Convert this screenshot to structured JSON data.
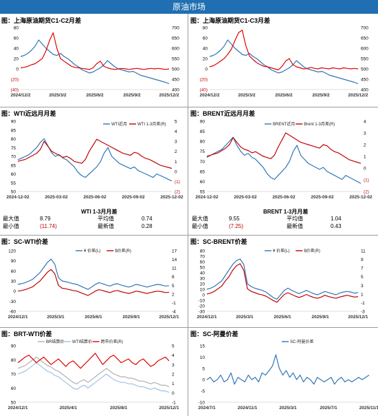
{
  "banner": {
    "title": "原油市场"
  },
  "stats": {
    "wti": {
      "title": "WTI 1-3月月差",
      "labels": [
        "最大值",
        "平均值",
        "最小值",
        "最新值"
      ],
      "max": "8.79",
      "avg": "0.74",
      "min": "(11.74)",
      "latest": "0.28"
    },
    "brent": {
      "title": "BRENT 1-3月月差",
      "labels": [
        "最大值",
        "平均值",
        "最小值",
        "最新值"
      ],
      "max": "9.55",
      "avg": "1.04",
      "min": "(7.25)",
      "latest": "0.43"
    }
  },
  "chart_data": [
    {
      "id": "sc_c1c2",
      "type": "line",
      "title": "图：上海原油期货C1-C2月差",
      "x_ticks": [
        "2024/12/2",
        "2025/3/2",
        "2025/6/2",
        "2025/9/2",
        "2025/12/2"
      ],
      "y_left_ticks": [
        "80",
        "60",
        "40",
        "20",
        "0",
        "(20)",
        "(40)"
      ],
      "y_left_range": [
        -40,
        80
      ],
      "y_right_ticks": [
        "700",
        "650",
        "600",
        "550",
        "500",
        "450",
        "400"
      ],
      "y_right_range": [
        400,
        700
      ],
      "series": [
        {
          "axis": "right",
          "color": "#2e75b6",
          "values": [
            560,
            565,
            575,
            590,
            610,
            640,
            620,
            600,
            585,
            570,
            565,
            575,
            560,
            550,
            535,
            520,
            510,
            495,
            488,
            480,
            485,
            495,
            505,
            520,
            540,
            525,
            510,
            500,
            495,
            490,
            485,
            488,
            480,
            470,
            465,
            460,
            455,
            450,
            445,
            440,
            435,
            428
          ]
        },
        {
          "axis": "left",
          "color": "#e00000",
          "values": [
            2,
            3,
            5,
            8,
            10,
            15,
            20,
            35,
            55,
            70,
            40,
            20,
            15,
            10,
            5,
            3,
            2,
            1,
            0,
            -1,
            2,
            10,
            15,
            5,
            2,
            0,
            -1,
            0,
            1,
            0,
            -1,
            0,
            1,
            0,
            -1,
            0,
            1,
            0,
            1,
            0,
            -1,
            0
          ]
        }
      ]
    },
    {
      "id": "sc_c1c3",
      "type": "line",
      "title": "图：上海原油期货C1-C3月差",
      "x_ticks": [
        "2024/12/2",
        "2025/3/2",
        "2025/6/2",
        "2025/9/2",
        "2025/12/2"
      ],
      "y_left_ticks": [
        "80",
        "60",
        "40",
        "20",
        "0",
        "(20)",
        "(40)"
      ],
      "y_left_range": [
        -40,
        80
      ],
      "y_right_ticks": [
        "700",
        "650",
        "600",
        "550",
        "500",
        "450",
        "400"
      ],
      "y_right_range": [
        400,
        700
      ],
      "series": [
        {
          "axis": "right",
          "color": "#2e75b6",
          "values": [
            560,
            565,
            575,
            590,
            610,
            640,
            620,
            600,
            585,
            570,
            565,
            575,
            560,
            550,
            535,
            520,
            510,
            495,
            488,
            480,
            485,
            495,
            505,
            520,
            540,
            525,
            510,
            500,
            495,
            490,
            485,
            488,
            480,
            470,
            465,
            460,
            455,
            450,
            445,
            440,
            435,
            428
          ]
        },
        {
          "axis": "left",
          "color": "#e00000",
          "values": [
            4,
            6,
            10,
            15,
            20,
            28,
            38,
            55,
            70,
            75,
            45,
            25,
            18,
            12,
            8,
            5,
            4,
            2,
            0,
            -2,
            5,
            15,
            20,
            8,
            4,
            2,
            0,
            1,
            3,
            1,
            0,
            2,
            1,
            0,
            2,
            1,
            0,
            2,
            1,
            0,
            1,
            0
          ]
        }
      ]
    },
    {
      "id": "wti_spread",
      "type": "line",
      "title": "图：WTI近远月月差",
      "x_ticks": [
        "2024-12-02",
        "2025-03-02",
        "2025-06-02",
        "2025-09-02",
        "2025-12-02"
      ],
      "y_left_ticks": [
        "90",
        "85",
        "80",
        "75",
        "70",
        "65",
        "60",
        "55",
        "50"
      ],
      "y_left_range": [
        50,
        90
      ],
      "y_right_ticks": [
        "5",
        "4",
        "3",
        "2",
        "1",
        "0",
        "(1)",
        "(2)"
      ],
      "y_right_range": [
        -2,
        5
      ],
      "series": [
        {
          "name": "WTI近月",
          "axis": "left",
          "color": "#2e75b6",
          "values": [
            68,
            69,
            70,
            71,
            73,
            75,
            78,
            80,
            76,
            72,
            70,
            71,
            69,
            68,
            66,
            64,
            61,
            59,
            58,
            60,
            62,
            64,
            67,
            72,
            75,
            70,
            68,
            66,
            65,
            64,
            63,
            64,
            62,
            61,
            60,
            59,
            58,
            60,
            59,
            58,
            57,
            56
          ]
        },
        {
          "name": "WTI 1-3月差(R)",
          "axis": "right",
          "color": "#c00000",
          "values": [
            1.0,
            1.1,
            1.2,
            1.4,
            1.6,
            1.8,
            2.2,
            3.0,
            2.5,
            2.0,
            1.8,
            1.6,
            1.4,
            1.5,
            1.3,
            1.0,
            0.9,
            0.8,
            1.2,
            2.0,
            2.6,
            3.2,
            3.0,
            2.8,
            2.6,
            2.4,
            2.2,
            2.0,
            1.8,
            1.7,
            1.6,
            1.9,
            1.8,
            1.5,
            1.3,
            1.2,
            1.0,
            0.8,
            0.6,
            0.5,
            0.4,
            0.3
          ]
        }
      ]
    },
    {
      "id": "brent_spread",
      "type": "line",
      "title": "图：BRENT近远月月差",
      "x_ticks": [
        "2024-12-02",
        "2025-03-02",
        "2025-06-02",
        "2025-09-02",
        "2025-12-02"
      ],
      "y_left_ticks": [
        "90",
        "85",
        "80",
        "75",
        "70",
        "65",
        "60",
        "55"
      ],
      "y_left_range": [
        55,
        90
      ],
      "y_right_ticks": [
        "4",
        "3",
        "2",
        "1",
        "0",
        "(1)",
        "(2)"
      ],
      "y_right_range": [
        -2,
        4
      ],
      "series": [
        {
          "name": "BRENT近月",
          "axis": "left",
          "color": "#2e75b6",
          "values": [
            72,
            73,
            74,
            75,
            76,
            78,
            80,
            82,
            78,
            75,
            73,
            74,
            72,
            71,
            69,
            67,
            64,
            62,
            61,
            63,
            65,
            67,
            70,
            75,
            78,
            73,
            71,
            69,
            68,
            67,
            66,
            67,
            65,
            64,
            63,
            62,
            61,
            63,
            62,
            61,
            60,
            59
          ]
        },
        {
          "name": "Brent 1-3月差(R)",
          "axis": "right",
          "color": "#c00000",
          "values": [
            1.0,
            1.1,
            1.2,
            1.3,
            1.5,
            1.7,
            2.0,
            2.6,
            2.2,
            1.8,
            1.6,
            1.5,
            1.3,
            1.4,
            1.2,
            1.0,
            0.9,
            0.8,
            1.1,
            1.8,
            2.4,
            3.0,
            2.8,
            2.6,
            2.4,
            2.2,
            2.1,
            2.0,
            1.9,
            1.8,
            1.7,
            2.0,
            1.9,
            1.6,
            1.4,
            1.3,
            1.1,
            0.9,
            0.7,
            0.6,
            0.5,
            0.4
          ]
        }
      ]
    },
    {
      "id": "sc_wti",
      "type": "line",
      "title": "图：SC-WTI价差",
      "x_ticks": [
        "2024/12/1",
        "2025/3/1",
        "2025/6/1",
        "2025/9/1",
        "2025/12/1"
      ],
      "y_left_ticks": [
        "120",
        "90",
        "60",
        "30",
        "0",
        "-30",
        "-60"
      ],
      "y_left_range": [
        -60,
        120
      ],
      "y_right_ticks": [
        "17",
        "14",
        "11",
        "8",
        "5",
        "2",
        "-1",
        "-4"
      ],
      "y_right_range": [
        -4,
        17
      ],
      "series": [
        {
          "name": "¥ 价差(L)",
          "axis": "left",
          "color": "#2e75b6",
          "values": [
            20,
            22,
            25,
            30,
            35,
            45,
            55,
            70,
            85,
            95,
            80,
            40,
            30,
            28,
            25,
            22,
            20,
            15,
            10,
            5,
            12,
            20,
            25,
            22,
            18,
            15,
            20,
            22,
            18,
            15,
            12,
            15,
            20,
            18,
            15,
            12,
            15,
            18,
            20,
            18,
            15,
            16
          ]
        },
        {
          "name": "$价差(R)",
          "axis": "right",
          "color": "#c00000",
          "values": [
            3,
            3.2,
            3.5,
            4,
            4.5,
            5.5,
            6.5,
            8,
            9.5,
            10.5,
            9,
            5,
            4,
            3.8,
            3.5,
            3.2,
            3,
            2.5,
            2,
            1.5,
            2.2,
            3,
            3.5,
            3.2,
            2.8,
            2.5,
            3,
            3.2,
            2.8,
            2.5,
            2.2,
            2.5,
            3,
            2.8,
            2.5,
            2.2,
            2.5,
            2.8,
            3,
            2.8,
            2.5,
            2.6
          ]
        }
      ]
    },
    {
      "id": "sc_brent",
      "type": "line",
      "title": "图：SC-BRENT价差",
      "x_ticks": [
        "2024/12/1",
        "2025/3/1",
        "2025/6/1",
        "2025/9/1",
        "2025/12/1"
      ],
      "y_left_ticks": [
        "80",
        "70",
        "60",
        "50",
        "40",
        "30",
        "20",
        "10",
        "0",
        "-10",
        "-20",
        "-30"
      ],
      "y_left_range": [
        -30,
        80
      ],
      "y_right_ticks": [
        "11",
        "9",
        "7",
        "5",
        "3",
        "1",
        "-1",
        "-3"
      ],
      "y_right_range": [
        -3,
        11
      ],
      "series": [
        {
          "name": "¥ 价差(L)",
          "axis": "left",
          "color": "#2e75b6",
          "values": [
            10,
            12,
            15,
            20,
            25,
            35,
            45,
            55,
            62,
            65,
            55,
            20,
            15,
            12,
            10,
            8,
            5,
            0,
            -5,
            -8,
            0,
            8,
            12,
            8,
            5,
            2,
            5,
            8,
            5,
            2,
            0,
            3,
            6,
            4,
            2,
            0,
            3,
            5,
            6,
            5,
            3,
            4
          ]
        },
        {
          "name": "$价差(R)",
          "axis": "right",
          "color": "#c00000",
          "values": [
            1,
            1.2,
            1.6,
            2.2,
            2.8,
            4,
            5,
            6.5,
            7.5,
            8,
            6.5,
            2.2,
            1.6,
            1.3,
            1,
            0.8,
            0.5,
            0,
            -0.5,
            -0.9,
            0,
            0.9,
            1.3,
            0.9,
            0.5,
            0.2,
            0.5,
            0.9,
            0.5,
            0.2,
            0,
            0.3,
            0.7,
            0.4,
            0.2,
            0,
            0.3,
            0.5,
            0.7,
            0.5,
            0.3,
            0.4
          ]
        }
      ]
    },
    {
      "id": "brt_wti",
      "type": "line",
      "title": "图：BRT-WTI价差",
      "x_ticks": [
        "2024/12/1",
        "2025/4/1",
        "2025/8/1",
        "2025/12/1"
      ],
      "y_left_ticks": [
        "90",
        "80",
        "70",
        "60",
        "50"
      ],
      "y_left_range": [
        50,
        90
      ],
      "y_right_ticks": [
        "5",
        "4",
        "3",
        "2",
        "1",
        "0",
        "-1"
      ],
      "y_right_range": [
        -1,
        5
      ],
      "series": [
        {
          "name": "BR结算价",
          "axis": "left",
          "color": "#b0b0b0",
          "values": [
            74,
            75,
            76,
            78,
            80,
            82,
            80,
            78,
            76,
            75,
            73,
            72,
            70,
            68,
            66,
            64,
            63,
            65,
            66,
            64,
            66,
            68,
            70,
            72,
            74,
            72,
            70,
            69,
            68,
            68,
            67,
            67,
            66,
            65,
            65,
            64,
            63,
            64,
            63,
            62,
            62,
            61
          ]
        },
        {
          "name": "WTI结算价",
          "axis": "left",
          "color": "#9dc3e6",
          "values": [
            70,
            71,
            72,
            74,
            76,
            78,
            76,
            74,
            72,
            71,
            69,
            68,
            66,
            64,
            62,
            60,
            59,
            61,
            62,
            60,
            62,
            64,
            66,
            68,
            70,
            68,
            66,
            65,
            64,
            64,
            63,
            63,
            62,
            61,
            61,
            60,
            59,
            60,
            59,
            58,
            58,
            57
          ]
        },
        {
          "name": "跨市价差(R)",
          "axis": "right",
          "color": "#e00000",
          "values": [
            3.2,
            3.5,
            3.8,
            4.0,
            3.6,
            3.2,
            3.5,
            3.8,
            3.4,
            3.0,
            3.3,
            3.6,
            3.2,
            2.8,
            3.2,
            3.4,
            3.0,
            2.6,
            3.0,
            3.4,
            3.8,
            4.2,
            3.6,
            3.0,
            3.4,
            3.8,
            4.0,
            3.6,
            3.2,
            3.4,
            3.6,
            3.2,
            3.0,
            3.4,
            3.6,
            3.2,
            2.8,
            3.0,
            3.4,
            3.6,
            3.8,
            3.4
          ]
        }
      ]
    },
    {
      "id": "sc_oman",
      "type": "line",
      "title": "图：SC-阿曼价差",
      "x_ticks": [
        "2024/7/1",
        "2024/11/1",
        "2025/3/1",
        "2025/7/1",
        "2025/11/1"
      ],
      "y_left_ticks": [
        "15",
        "10",
        "5",
        "0",
        "-5",
        "-10"
      ],
      "y_left_range": [
        -10,
        15
      ],
      "series": [
        {
          "name": "SC-阿曼价差",
          "axis": "left",
          "color": "#2e75b6",
          "values": [
            0,
            1,
            -1,
            0,
            2,
            -1,
            0,
            3,
            -2,
            1,
            0,
            -1,
            2,
            0,
            1,
            -1,
            3,
            2,
            4,
            6,
            11,
            5,
            2,
            4,
            1,
            3,
            0,
            2,
            -1,
            1,
            0,
            -2,
            1,
            0,
            -1,
            0,
            1,
            -2,
            0,
            1,
            -1,
            0,
            -1,
            0,
            1,
            0,
            1,
            2
          ]
        }
      ]
    }
  ]
}
